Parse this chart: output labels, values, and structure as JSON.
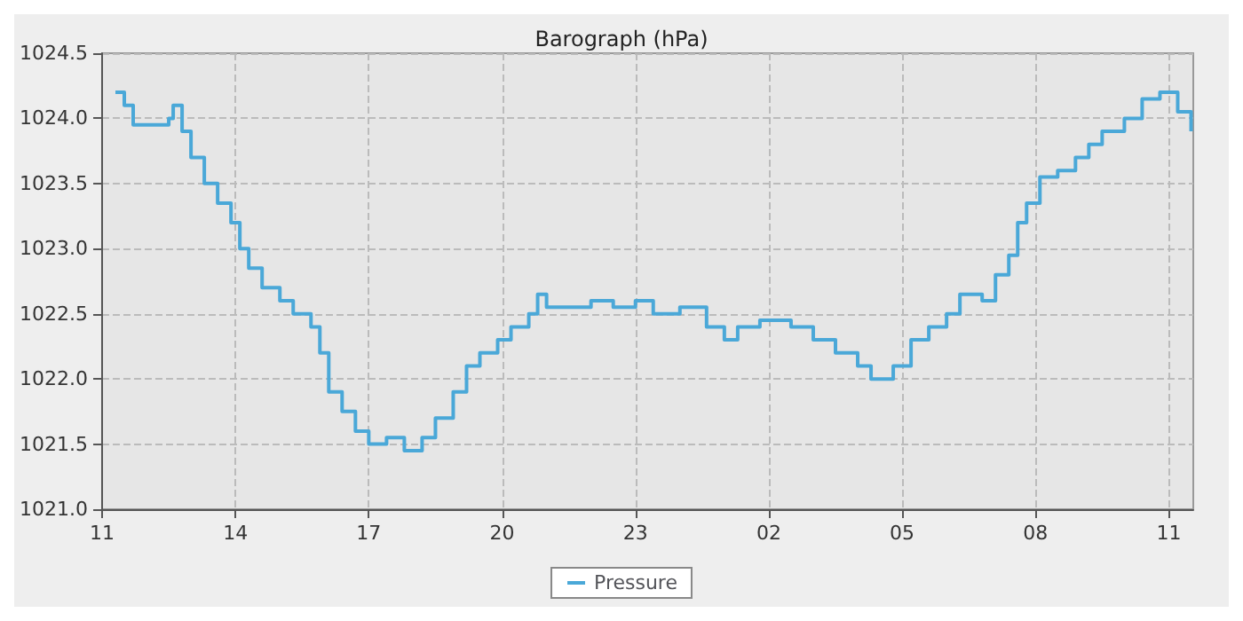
{
  "chart_data": {
    "type": "step",
    "title": "Barograph (hPa)",
    "legend": "bottom",
    "grid": true,
    "line_style": "solid",
    "marker": "none",
    "xlim": [
      "--01-01T11:00",
      "--01-02T11:33"
    ],
    "xticks": [
      {
        "value": "--01-01T11:00",
        "label": "11"
      },
      {
        "value": "--01-01T14:00",
        "label": "14"
      },
      {
        "value": "--01-01T17:00",
        "label": "17"
      },
      {
        "value": "--01-01T20:00",
        "label": "20"
      },
      {
        "value": "--01-01T23:00",
        "label": "23"
      },
      {
        "value": "--01-02T02:00",
        "label": "02"
      },
      {
        "value": "--01-02T05:00",
        "label": "05"
      },
      {
        "value": "--01-02T08:00",
        "label": "08"
      },
      {
        "value": "--01-02T11:00",
        "label": "11"
      }
    ],
    "ylim": [
      1021,
      1024.5
    ],
    "yticks": [
      {
        "value": 1021,
        "label": "1021.0"
      },
      {
        "value": 1021.5,
        "label": "1021.5"
      },
      {
        "value": 1022,
        "label": "1022.0"
      },
      {
        "value": 1022.5,
        "label": "1022.5"
      },
      {
        "value": 1023,
        "label": "1023.0"
      },
      {
        "value": 1023.5,
        "label": "1023.5"
      },
      {
        "value": 1024,
        "label": "1024.0"
      },
      {
        "value": 1024.5,
        "label": "1024.5"
      }
    ],
    "series": [
      {
        "name": "Pressure",
        "color": "#4aa8d8",
        "x": [
          "--01-01T11:18",
          "--01-01T11:30",
          "--01-01T11:42",
          "--01-01T12:30",
          "--01-01T12:36",
          "--01-01T12:48",
          "--01-01T13:00",
          "--01-01T13:18",
          "--01-01T13:36",
          "--01-01T13:54",
          "--01-01T14:06",
          "--01-01T14:18",
          "--01-01T14:36",
          "--01-01T15:00",
          "--01-01T15:18",
          "--01-01T15:42",
          "--01-01T15:54",
          "--01-01T16:06",
          "--01-01T16:24",
          "--01-01T16:42",
          "--01-01T17:00",
          "--01-01T17:24",
          "--01-01T17:48",
          "--01-01T18:12",
          "--01-01T18:30",
          "--01-01T18:54",
          "--01-01T19:12",
          "--01-01T19:30",
          "--01-01T19:54",
          "--01-01T20:12",
          "--01-01T20:36",
          "--01-01T20:48",
          "--01-01T21:00",
          "--01-01T21:30",
          "--01-01T22:00",
          "--01-01T22:30",
          "--01-01T23:00",
          "--01-01T23:24",
          "--01-02T00:00",
          "--01-02T00:36",
          "--01-02T01:00",
          "--01-02T01:18",
          "--01-02T01:48",
          "--01-02T02:30",
          "--01-02T03:00",
          "--01-02T03:30",
          "--01-02T04:00",
          "--01-02T04:18",
          "--01-02T04:48",
          "--01-02T05:12",
          "--01-02T05:36",
          "--01-02T06:00",
          "--01-02T06:18",
          "--01-02T06:48",
          "--01-02T07:06",
          "--01-02T07:24",
          "--01-02T07:36",
          "--01-02T07:48",
          "--01-02T08:06",
          "--01-02T08:30",
          "--01-02T08:54",
          "--01-02T09:12",
          "--01-02T09:30",
          "--01-02T10:00",
          "--01-02T10:24",
          "--01-02T10:48",
          "--01-02T11:12",
          "--01-02T11:30"
        ],
        "values": [
          1024.2,
          1024.1,
          1023.95,
          1024.0,
          1024.1,
          1023.9,
          1023.7,
          1023.5,
          1023.35,
          1023.2,
          1023.0,
          1022.85,
          1022.7,
          1022.6,
          1022.5,
          1022.4,
          1022.2,
          1021.9,
          1021.75,
          1021.6,
          1021.5,
          1021.55,
          1021.45,
          1021.55,
          1021.7,
          1021.9,
          1022.1,
          1022.2,
          1022.3,
          1022.4,
          1022.5,
          1022.65,
          1022.55,
          1022.55,
          1022.6,
          1022.55,
          1022.6,
          1022.5,
          1022.55,
          1022.4,
          1022.3,
          1022.4,
          1022.45,
          1022.4,
          1022.3,
          1022.2,
          1022.1,
          1022.0,
          1022.1,
          1022.3,
          1022.4,
          1022.5,
          1022.65,
          1022.6,
          1022.8,
          1022.95,
          1023.2,
          1023.35,
          1023.55,
          1023.6,
          1023.7,
          1023.8,
          1023.9,
          1024.0,
          1024.15,
          1024.2,
          1024.05,
          1023.9
        ]
      }
    ]
  }
}
